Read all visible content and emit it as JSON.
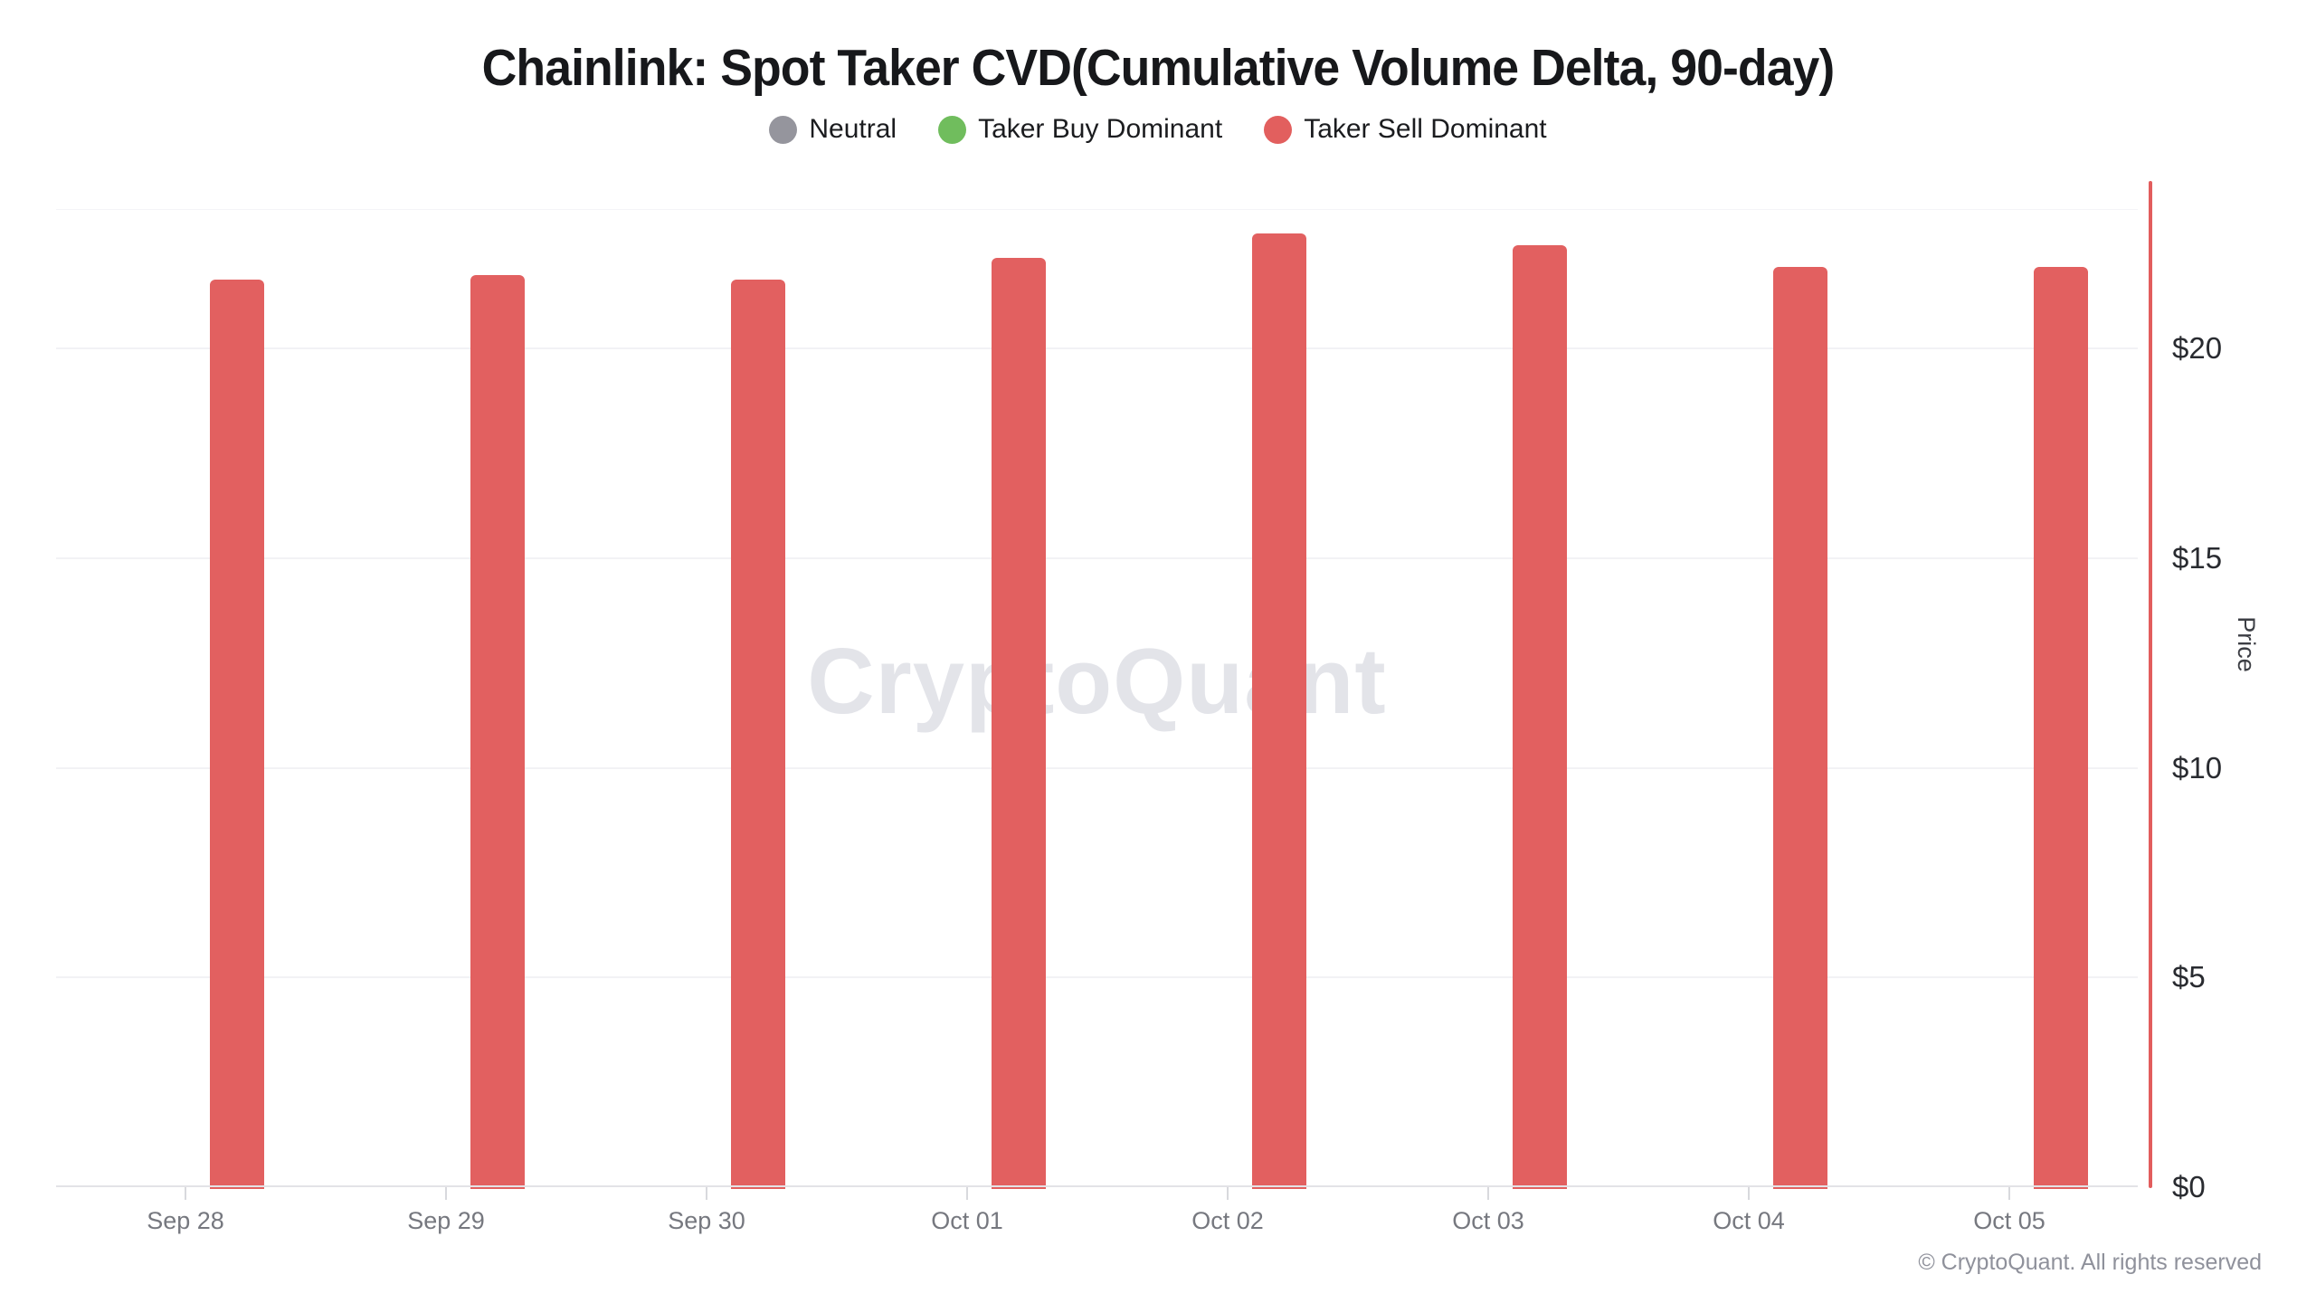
{
  "header": {
    "title": "Chainlink: Spot Taker CVD(Cumulative Volume Delta, 90-day)"
  },
  "legend": {
    "items": [
      {
        "label": "Neutral",
        "color": "#95959d"
      },
      {
        "label": "Taker Buy Dominant",
        "color": "#70bd5d"
      },
      {
        "label": "Taker Sell Dominant",
        "color": "#e25f5e"
      }
    ]
  },
  "watermark": "CryptoQuant",
  "footer": {
    "copyright": "© CryptoQuant. All rights reserved"
  },
  "chart_data": {
    "type": "bar",
    "title": "Chainlink: Spot Taker CVD(Cumulative Volume Delta, 90-day)",
    "categories": [
      "Sep 28",
      "Sep 29",
      "Sep 30",
      "Oct 01",
      "Oct 02",
      "Oct 03",
      "Oct 04",
      "Oct 05"
    ],
    "series": [
      {
        "name": "Taker Sell Dominant",
        "color": "#e26060",
        "values": [
          21.7,
          21.8,
          21.7,
          22.2,
          22.8,
          22.5,
          22.0,
          22.0
        ]
      }
    ],
    "xlabel": "",
    "ylabel": "Price",
    "ylim": [
      0,
      24
    ],
    "yticks": [
      {
        "value": 0,
        "label": "$0"
      },
      {
        "value": 5,
        "label": "$5"
      },
      {
        "value": 10,
        "label": "$10"
      },
      {
        "value": 15,
        "label": "$15"
      },
      {
        "value": 20,
        "label": "$20"
      }
    ],
    "y_axis_side": "right",
    "grid": true,
    "legend_position": "top",
    "axis_line_color": "#e25d5d"
  }
}
